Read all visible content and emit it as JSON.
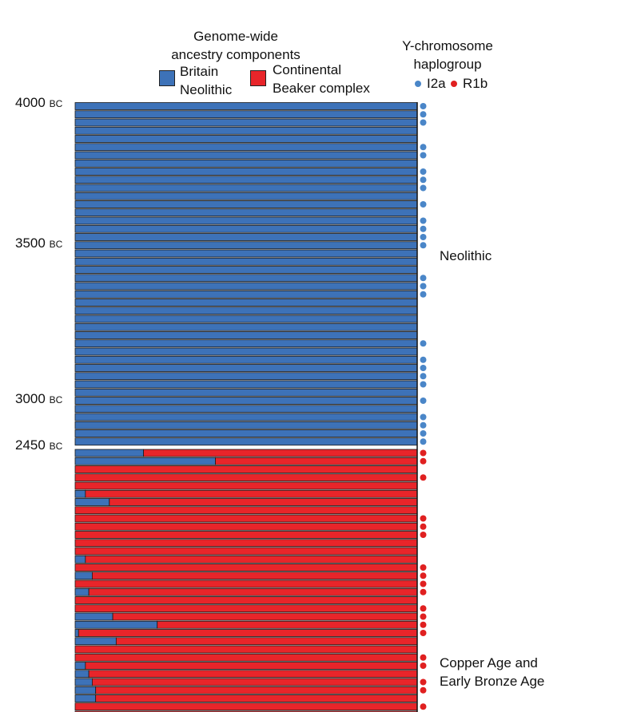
{
  "legend": {
    "ancestry_title_line1": "Genome-wide",
    "ancestry_title_line2": "ancestry components",
    "britain_line1": "Britain",
    "britain_line2": "Neolithic",
    "beaker_line1": "Continental",
    "beaker_line2": "Beaker complex",
    "ychrom_title_line1": "Y-chromosome",
    "ychrom_title_line2": "haplogroup",
    "i2a": "I2a",
    "r1b": "R1b"
  },
  "colors": {
    "britain_neolithic": "#3d72b8",
    "beaker": "#e8252a",
    "dot_i2a": "#4a86c8",
    "dot_r1b": "#e02020"
  },
  "time_ticks": [
    {
      "year": "4000",
      "unit": "BC"
    },
    {
      "year": "3500",
      "unit": "BC"
    },
    {
      "year": "3000",
      "unit": "BC"
    },
    {
      "year": "2450",
      "unit": "BC"
    }
  ],
  "period_labels": {
    "neolithic": "Neolithic",
    "copper_line1": "Copper Age and",
    "copper_line2": "Early Bronze Age"
  },
  "chart_data": {
    "type": "bar",
    "orientation": "horizontal-stacked",
    "series_names": [
      "Britain Neolithic",
      "Continental Beaker complex"
    ],
    "neolithic": {
      "britain_neolithic_fraction": [
        1,
        1,
        1,
        1,
        1,
        1,
        1,
        1,
        1,
        1,
        1,
        1,
        1,
        1,
        1,
        1,
        1,
        1,
        1,
        1,
        1,
        1,
        1,
        1,
        1,
        1,
        1,
        1,
        1,
        1,
        1,
        1,
        1,
        1,
        1,
        1,
        1,
        1,
        1,
        1,
        1,
        1
      ],
      "haplogroup": [
        "I2a",
        "I2a",
        "I2a",
        null,
        null,
        "I2a",
        "I2a",
        null,
        "I2a",
        "I2a",
        "I2a",
        null,
        "I2a",
        null,
        "I2a",
        "I2a",
        "I2a",
        "I2a",
        null,
        null,
        null,
        "I2a",
        "I2a",
        "I2a",
        null,
        null,
        null,
        null,
        null,
        "I2a",
        null,
        "I2a",
        "I2a",
        "I2a",
        "I2a",
        null,
        "I2a",
        null,
        "I2a",
        "I2a",
        "I2a",
        "I2a"
      ]
    },
    "beaker": {
      "britain_neolithic_fraction": [
        0.2,
        0.41,
        0,
        0,
        0,
        0.03,
        0.1,
        0,
        0,
        0,
        0,
        0,
        0,
        0.03,
        0,
        0.05,
        0,
        0.04,
        0,
        0,
        0.11,
        0.24,
        0.01,
        0.12,
        0,
        0,
        0.03,
        0.04,
        0.05,
        0.06,
        0.06,
        0,
        0
      ],
      "haplogroup": [
        "R1b",
        "R1b",
        null,
        "R1b",
        null,
        null,
        null,
        null,
        "R1b",
        "R1b",
        "R1b",
        null,
        null,
        null,
        "R1b",
        "R1b",
        "R1b",
        "R1b",
        null,
        "R1b",
        "R1b",
        "R1b",
        "R1b",
        null,
        null,
        "R1b",
        "R1b",
        null,
        "R1b",
        "R1b",
        null,
        "R1b",
        null
      ]
    }
  }
}
